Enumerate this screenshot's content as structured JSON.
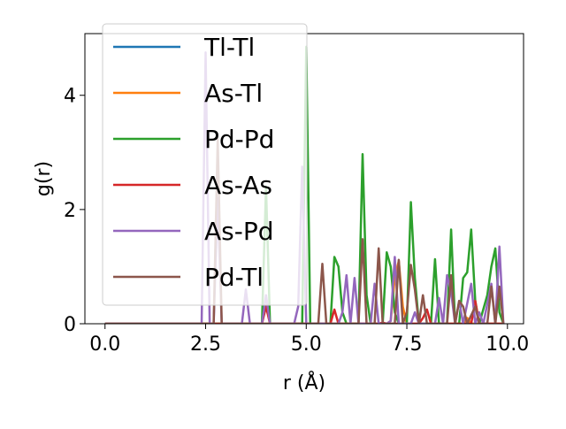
{
  "chart_data": {
    "type": "line",
    "xlabel": "r (Å)",
    "ylabel": "g(r)",
    "xlim": [
      -0.5,
      10.4
    ],
    "ylim": [
      0,
      5.08
    ],
    "xticks": [
      0.0,
      2.5,
      5.0,
      7.5,
      10.0
    ],
    "xtick_labels": [
      "0.0",
      "2.5",
      "5.0",
      "7.5",
      "10.0"
    ],
    "yticks": [
      0,
      2,
      4
    ],
    "ytick_labels": [
      "0",
      "2",
      "4"
    ],
    "grid": false,
    "legend_position": "upper-left",
    "series": [
      {
        "name": "Tl-Tl",
        "color": "#1f77b4",
        "points": [
          [
            0,
            0
          ],
          [
            9.9,
            0
          ]
        ]
      },
      {
        "name": "As-Tl",
        "color": "#ff7f0e",
        "points": [
          [
            0,
            0
          ],
          [
            7.0,
            0
          ],
          [
            7.1,
            0.05
          ],
          [
            7.2,
            0.8
          ],
          [
            7.3,
            1.1
          ],
          [
            7.4,
            0.3
          ],
          [
            7.5,
            0
          ],
          [
            8.9,
            0
          ],
          [
            9.0,
            0.1
          ],
          [
            9.1,
            0
          ],
          [
            9.9,
            0
          ]
        ]
      },
      {
        "name": "Pd-Pd",
        "color": "#2ca02c",
        "points": [
          [
            0,
            0
          ],
          [
            3.9,
            0
          ],
          [
            4.0,
            2.4
          ],
          [
            4.1,
            0
          ],
          [
            4.9,
            0
          ],
          [
            5.0,
            4.85
          ],
          [
            5.1,
            0
          ],
          [
            5.6,
            0
          ],
          [
            5.7,
            1.17
          ],
          [
            5.8,
            1.0
          ],
          [
            5.9,
            0.2
          ],
          [
            6.0,
            0
          ],
          [
            6.3,
            0
          ],
          [
            6.4,
            2.97
          ],
          [
            6.5,
            0.5
          ],
          [
            6.6,
            0
          ],
          [
            6.9,
            0
          ],
          [
            7.0,
            1.25
          ],
          [
            7.1,
            1.0
          ],
          [
            7.2,
            0.2
          ],
          [
            7.3,
            0
          ],
          [
            7.5,
            0
          ],
          [
            7.6,
            2.13
          ],
          [
            7.7,
            0.8
          ],
          [
            7.8,
            0
          ],
          [
            8.1,
            0
          ],
          [
            8.2,
            1.13
          ],
          [
            8.3,
            0
          ],
          [
            8.5,
            0
          ],
          [
            8.6,
            1.65
          ],
          [
            8.7,
            0
          ],
          [
            8.8,
            0
          ],
          [
            8.9,
            0.8
          ],
          [
            9.0,
            0.9
          ],
          [
            9.1,
            1.65
          ],
          [
            9.2,
            0.4
          ],
          [
            9.3,
            0
          ],
          [
            9.5,
            0.5
          ],
          [
            9.6,
            1.0
          ],
          [
            9.7,
            1.32
          ],
          [
            9.8,
            0.2
          ],
          [
            9.9,
            0
          ]
        ]
      },
      {
        "name": "As-As",
        "color": "#d62728",
        "points": [
          [
            0,
            0
          ],
          [
            3.9,
            0
          ],
          [
            4.0,
            0.3
          ],
          [
            4.1,
            0
          ],
          [
            5.6,
            0
          ],
          [
            5.7,
            0.25
          ],
          [
            5.8,
            0
          ],
          [
            6.8,
            0
          ],
          [
            6.9,
            0.02
          ],
          [
            7.0,
            0
          ],
          [
            7.8,
            0
          ],
          [
            7.9,
            0.1
          ],
          [
            8.0,
            0.25
          ],
          [
            8.1,
            0
          ],
          [
            9.1,
            0
          ],
          [
            9.2,
            0.4
          ],
          [
            9.3,
            0
          ],
          [
            9.9,
            0
          ]
        ]
      },
      {
        "name": "As-Pd",
        "color": "#9467bd",
        "points": [
          [
            0,
            0
          ],
          [
            2.4,
            0
          ],
          [
            2.5,
            4.75
          ],
          [
            2.6,
            0
          ],
          [
            2.7,
            0
          ],
          [
            2.8,
            2.2
          ],
          [
            2.9,
            0
          ],
          [
            3.4,
            0
          ],
          [
            3.5,
            0.6
          ],
          [
            3.6,
            0
          ],
          [
            3.9,
            0
          ],
          [
            4.0,
            0.5
          ],
          [
            4.1,
            0
          ],
          [
            4.7,
            0
          ],
          [
            4.8,
            0.3
          ],
          [
            4.9,
            2.75
          ],
          [
            5.0,
            0
          ],
          [
            5.8,
            0
          ],
          [
            5.9,
            0.2
          ],
          [
            6.0,
            0.85
          ],
          [
            6.1,
            0
          ],
          [
            6.2,
            0.8
          ],
          [
            6.3,
            0
          ],
          [
            6.6,
            0
          ],
          [
            6.7,
            0.7
          ],
          [
            6.8,
            0
          ],
          [
            7.0,
            0
          ],
          [
            7.1,
            0.05
          ],
          [
            7.2,
            1.17
          ],
          [
            7.3,
            0
          ],
          [
            7.6,
            0
          ],
          [
            7.7,
            0.2
          ],
          [
            7.8,
            0
          ],
          [
            8.2,
            0
          ],
          [
            8.3,
            0.45
          ],
          [
            8.4,
            0
          ],
          [
            8.5,
            0.85
          ],
          [
            8.6,
            0.55
          ],
          [
            8.7,
            0
          ],
          [
            8.8,
            0.4
          ],
          [
            8.9,
            0
          ],
          [
            9.1,
            0.7
          ],
          [
            9.2,
            0
          ],
          [
            9.3,
            0.2
          ],
          [
            9.4,
            0
          ],
          [
            9.6,
            0.7
          ],
          [
            9.7,
            0
          ],
          [
            9.8,
            1.35
          ],
          [
            9.9,
            0
          ]
        ]
      },
      {
        "name": "Pd-Tl",
        "color": "#8c564b",
        "points": [
          [
            0,
            0
          ],
          [
            2.7,
            0
          ],
          [
            2.8,
            3.25
          ],
          [
            2.9,
            0
          ],
          [
            5.3,
            0
          ],
          [
            5.4,
            1.05
          ],
          [
            5.5,
            0
          ],
          [
            6.3,
            0
          ],
          [
            6.4,
            1.48
          ],
          [
            6.5,
            0
          ],
          [
            6.7,
            0
          ],
          [
            6.8,
            1.32
          ],
          [
            6.9,
            0
          ],
          [
            7.2,
            0
          ],
          [
            7.3,
            1.12
          ],
          [
            7.4,
            0
          ],
          [
            7.5,
            0.2
          ],
          [
            7.6,
            1.03
          ],
          [
            7.7,
            0.6
          ],
          [
            7.8,
            0
          ],
          [
            7.9,
            0.5
          ],
          [
            8.0,
            0
          ],
          [
            8.5,
            0
          ],
          [
            8.6,
            0.85
          ],
          [
            8.7,
            0
          ],
          [
            8.8,
            0.4
          ],
          [
            8.9,
            0.3
          ],
          [
            9.0,
            0
          ],
          [
            9.2,
            0.3
          ],
          [
            9.3,
            0
          ],
          [
            9.5,
            0
          ],
          [
            9.6,
            0.65
          ],
          [
            9.7,
            0
          ],
          [
            9.8,
            0.65
          ],
          [
            9.9,
            0
          ]
        ]
      }
    ]
  }
}
